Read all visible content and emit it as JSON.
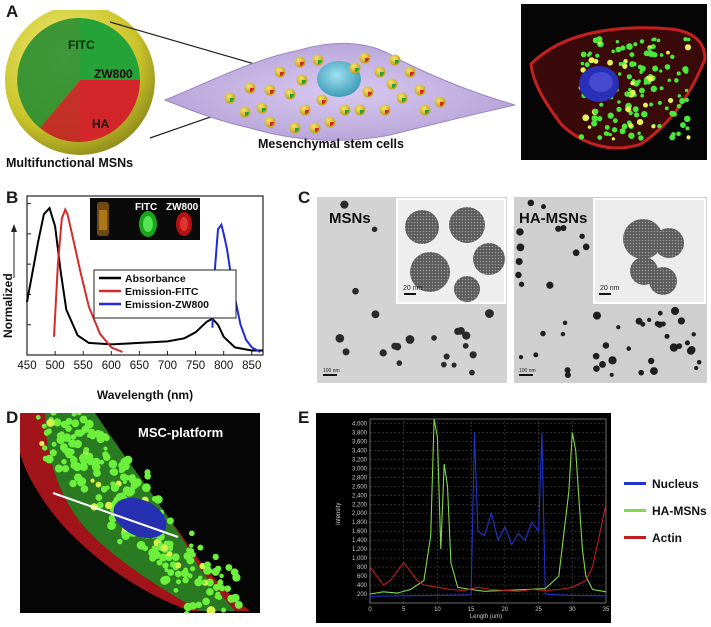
{
  "panel_a": {
    "letter": "A",
    "sphere_labels": [
      "FITC",
      "ZW800",
      "HA"
    ],
    "caption_left": "Multifunctional MSNs",
    "caption_mid": "Mesenchymal stem cells"
  },
  "panel_b": {
    "letter": "B",
    "inset_labels": [
      "FITC",
      "ZW800"
    ],
    "chart_data": {
      "type": "line",
      "xlabel": "Wavelength (nm)",
      "ylabel": "Normalized",
      "xlim": [
        450,
        870
      ],
      "ylim": [
        0,
        1.05
      ],
      "x_ticks": [
        450,
        500,
        550,
        600,
        650,
        700,
        750,
        800,
        850
      ],
      "legend_position": "center-right",
      "series": [
        {
          "name": "Absorbance",
          "color": "#000000",
          "x": [
            450,
            470,
            480,
            490,
            500,
            510,
            520,
            540,
            560,
            600,
            650,
            700,
            730,
            750,
            770,
            780,
            790,
            800,
            820,
            850,
            870
          ],
          "y": [
            0.35,
            0.75,
            0.93,
            0.97,
            0.85,
            0.55,
            0.3,
            0.13,
            0.08,
            0.07,
            0.08,
            0.09,
            0.11,
            0.15,
            0.22,
            0.24,
            0.2,
            0.12,
            0.05,
            0.03,
            0.03
          ]
        },
        {
          "name": "Emission-FITC",
          "color": "#d42a2a",
          "x": [
            498,
            505,
            512,
            518,
            522,
            530,
            545,
            560,
            580,
            600,
            620
          ],
          "y": [
            0.12,
            0.6,
            0.9,
            0.96,
            0.93,
            0.8,
            0.55,
            0.32,
            0.14,
            0.05,
            0.02
          ]
        },
        {
          "name": "Emission-ZW800",
          "color": "#1f2bd6",
          "x": [
            780,
            784,
            790,
            796,
            800,
            806,
            812,
            820,
            830,
            840,
            850,
            865
          ],
          "y": [
            0.18,
            0.55,
            0.83,
            0.86,
            0.8,
            0.7,
            0.55,
            0.38,
            0.2,
            0.1,
            0.05,
            0.02
          ]
        }
      ]
    }
  },
  "panel_c": {
    "letter": "C",
    "left_label": "MSNs",
    "right_label": "HA-MSNs",
    "scale_large": "100 nm",
    "scale_inset": "20 nm"
  },
  "panel_d": {
    "letter": "D",
    "title": "MSC-platform"
  },
  "panel_e": {
    "letter": "E",
    "chart_data": {
      "type": "line",
      "xlabel": "Length (um)",
      "ylabel": "Intensity",
      "xlim": [
        0,
        35
      ],
      "ylim": [
        0,
        4100
      ],
      "x_ticks": [
        0,
        5,
        10,
        15,
        20,
        25,
        30,
        35
      ],
      "y_ticks": [
        200,
        400,
        600,
        800,
        1000,
        1200,
        1400,
        1600,
        1800,
        2000,
        2200,
        2400,
        2600,
        2800,
        3000,
        3200,
        3400,
        3600,
        3800,
        4000
      ],
      "grid": true,
      "legend_position": "right",
      "series": [
        {
          "name": "Nucleus",
          "color": "#2233cc",
          "x": [
            0,
            5,
            10,
            15,
            15.5,
            16,
            17,
            18,
            19,
            20,
            21,
            22,
            23,
            24,
            25,
            25.5,
            26,
            28,
            30,
            35
          ],
          "y": [
            150,
            160,
            170,
            180,
            3800,
            1600,
            1500,
            2000,
            1400,
            1700,
            1300,
            1550,
            1400,
            1800,
            1600,
            3800,
            200,
            180,
            170,
            160
          ]
        },
        {
          "name": "HA-MSNs",
          "color": "#7fd94a",
          "x": [
            0,
            2,
            4,
            6,
            8,
            9,
            9.5,
            10,
            10.5,
            11,
            11.5,
            12,
            13,
            15,
            17,
            20,
            23,
            26,
            28,
            29.5,
            30,
            30.5,
            31,
            31.5,
            32,
            33,
            35
          ],
          "y": [
            200,
            250,
            220,
            300,
            500,
            1500,
            4100,
            3700,
            1200,
            3100,
            2600,
            900,
            350,
            300,
            260,
            280,
            300,
            320,
            600,
            2500,
            3800,
            3400,
            2300,
            1200,
            600,
            300,
            250
          ]
        },
        {
          "name": "Actin",
          "color": "#c21d1d",
          "x": [
            0,
            1,
            2,
            3,
            4,
            5,
            6,
            7,
            8,
            10,
            12,
            14,
            16,
            18,
            20,
            22,
            24,
            26,
            28,
            30,
            32,
            33,
            34,
            35
          ],
          "y": [
            800,
            600,
            400,
            500,
            700,
            900,
            700,
            500,
            400,
            350,
            300,
            280,
            350,
            300,
            280,
            260,
            300,
            280,
            300,
            350,
            500,
            800,
            1500,
            2200
          ]
        }
      ]
    }
  }
}
